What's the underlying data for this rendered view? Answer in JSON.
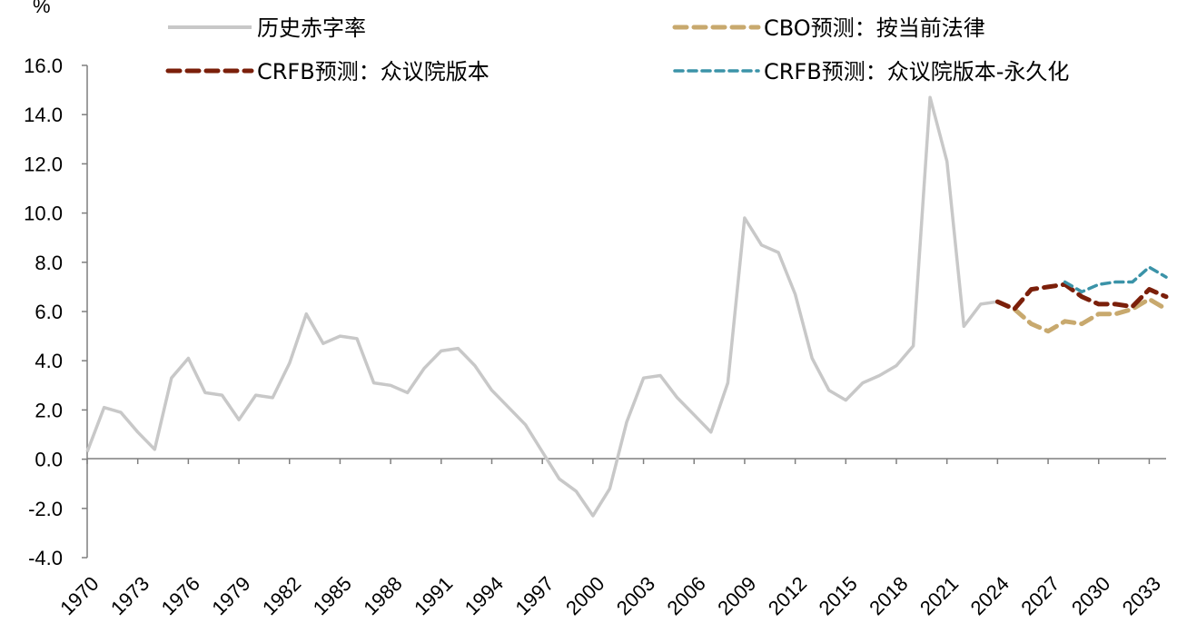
{
  "chart_data": {
    "type": "line",
    "ylabel": "%",
    "ylim": [
      -4,
      16
    ],
    "yticks": [
      "16.0",
      "14.0",
      "12.0",
      "10.0",
      "8.0",
      "6.0",
      "4.0",
      "2.0",
      "0.0",
      "-2.0",
      "-4.0"
    ],
    "ytick_values": [
      16,
      14,
      12,
      10,
      8,
      6,
      4,
      2,
      0,
      -2,
      -4
    ],
    "xlim": [
      1970,
      2034
    ],
    "xticks": [
      "1970",
      "1973",
      "1976",
      "1979",
      "1982",
      "1985",
      "1988",
      "1991",
      "1994",
      "1997",
      "2000",
      "2003",
      "2006",
      "2009",
      "2012",
      "2015",
      "2018",
      "2021",
      "2024",
      "2027",
      "2030",
      "2033"
    ],
    "grid": false,
    "legend_position": "top",
    "series": [
      {
        "name": "历史赤字率",
        "color": "#c8c8c8",
        "style": "solid",
        "x": [
          1970,
          1971,
          1972,
          1973,
          1974,
          1975,
          1976,
          1977,
          1978,
          1979,
          1980,
          1981,
          1982,
          1983,
          1984,
          1985,
          1986,
          1987,
          1988,
          1989,
          1990,
          1991,
          1992,
          1993,
          1994,
          1995,
          1996,
          1997,
          1998,
          1999,
          2000,
          2001,
          2002,
          2003,
          2004,
          2005,
          2006,
          2007,
          2008,
          2009,
          2010,
          2011,
          2012,
          2013,
          2014,
          2015,
          2016,
          2017,
          2018,
          2019,
          2020,
          2021,
          2022,
          2023,
          2024
        ],
        "y": [
          0.3,
          2.1,
          1.9,
          1.1,
          0.4,
          3.3,
          4.1,
          2.7,
          2.6,
          1.6,
          2.6,
          2.5,
          3.9,
          5.9,
          4.7,
          5.0,
          4.9,
          3.1,
          3.0,
          2.7,
          3.7,
          4.4,
          4.5,
          3.8,
          2.8,
          2.1,
          1.4,
          0.3,
          -0.8,
          -1.3,
          -2.3,
          -1.2,
          1.5,
          3.3,
          3.4,
          2.5,
          1.8,
          1.1,
          3.1,
          9.8,
          8.7,
          8.4,
          6.7,
          4.1,
          2.8,
          2.4,
          3.1,
          3.4,
          3.8,
          4.6,
          14.7,
          12.1,
          5.4,
          6.3,
          6.4
        ]
      },
      {
        "name": "CBO预测：按当前法律",
        "color": "#c8a96e",
        "style": "dashed",
        "x": [
          2024,
          2025,
          2026,
          2027,
          2028,
          2029,
          2030,
          2031,
          2032,
          2033,
          2034
        ],
        "y": [
          6.4,
          6.1,
          5.5,
          5.2,
          5.6,
          5.5,
          5.9,
          5.9,
          6.1,
          6.5,
          6.1
        ]
      },
      {
        "name": "CRFB预测：众议院版本",
        "color": "#7b1f0a",
        "style": "dashed",
        "x": [
          2024,
          2025,
          2026,
          2027,
          2028,
          2029,
          2030,
          2031,
          2032,
          2033,
          2034
        ],
        "y": [
          6.4,
          6.1,
          6.9,
          7.0,
          7.1,
          6.6,
          6.3,
          6.3,
          6.2,
          6.9,
          6.6
        ]
      },
      {
        "name": "CRFB预测：众议院版本-永久化",
        "color": "#3b93a8",
        "style": "dashed",
        "x": [
          2028,
          2029,
          2030,
          2031,
          2032,
          2033,
          2034
        ],
        "y": [
          7.2,
          6.8,
          7.1,
          7.2,
          7.2,
          7.8,
          7.4
        ]
      }
    ]
  }
}
